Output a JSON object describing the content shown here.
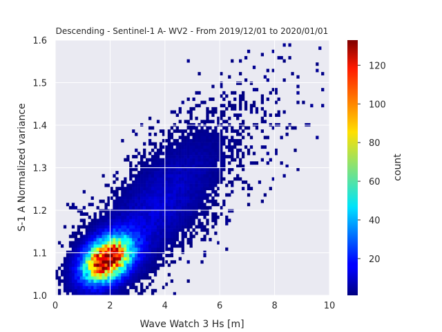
{
  "chart_data": {
    "type": "heatmap",
    "title": "Descending - Sentinel-1 A- WV2 - From 2019/12/01 to 2020/01/01",
    "xlabel": "Wave Watch 3 Hs [m]",
    "ylabel": "S-1 A Normalized variance",
    "xlim": [
      0,
      10
    ],
    "ylim": [
      1.0,
      1.6
    ],
    "xticks": [
      "0",
      "2",
      "4",
      "6",
      "8",
      "10"
    ],
    "yticks": [
      "1.0",
      "1.1",
      "1.2",
      "1.3",
      "1.4",
      "1.5",
      "1.6"
    ],
    "grid": true,
    "colormap": "jet",
    "colorbar": {
      "label": "count",
      "range": [
        1,
        133
      ],
      "ticks": [
        "20",
        "40",
        "60",
        "80",
        "100",
        "120"
      ]
    },
    "distribution": {
      "peak_x": 1.9,
      "peak_y": 1.085,
      "peak_count": 133,
      "trend": "positive correlation: normalized variance increases with Hs"
    }
  },
  "colors": {
    "background": "#eaeaf2",
    "grid": "#ffffff",
    "text": "#262626"
  }
}
